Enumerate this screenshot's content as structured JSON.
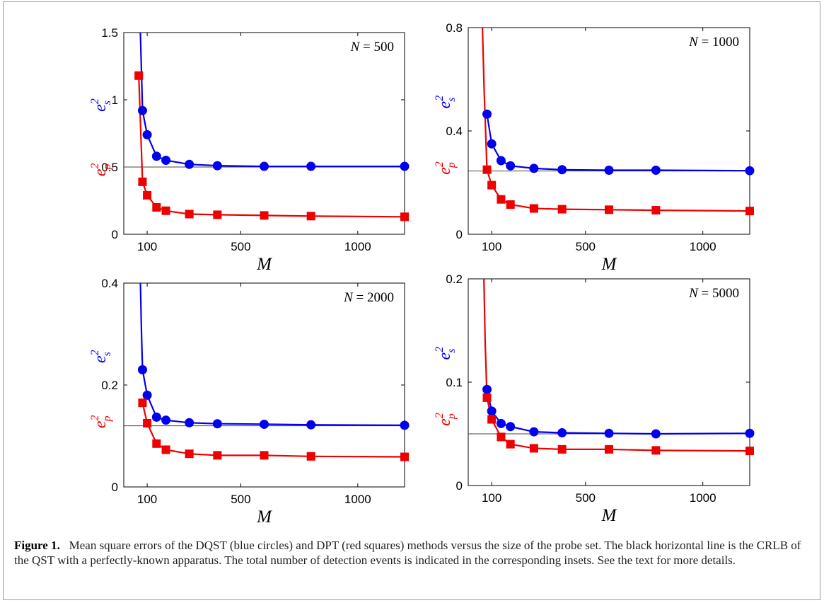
{
  "figure_label": "Figure 1.",
  "caption_text": "Mean square errors of the DQST (blue circles) and DPT (red squares) methods versus the size of the probe set. The black horizontal line is the CRLB of the QST with a perfectly-known apparatus. The total number of detection events is indicated in the corresponding insets. See the text for more details.",
  "colors": {
    "dqst": "#0000ee",
    "dpt": "#ee0000",
    "crlb": "#444444",
    "axis": "#000000"
  },
  "chart_data": [
    {
      "type": "line",
      "inset": {
        "var": "N",
        "eq": " = ",
        "value": "500"
      },
      "ylabel_blue": {
        "base": "e",
        "sup": "2",
        "sub": "s"
      },
      "ylabel_red": {
        "base": "e",
        "sup": "2",
        "sub": "p"
      },
      "xlabel": "M",
      "xlim": [
        0,
        1200
      ],
      "ylim": [
        0,
        1.5
      ],
      "xticks": [
        100,
        500,
        1000
      ],
      "xtick_labels": [
        "100",
        "500",
        "1000"
      ],
      "yticks": [
        0,
        0.5,
        1,
        1.5
      ],
      "ytick_labels": [
        "0",
        "0.5",
        "1",
        "1.5"
      ],
      "crlb": 0.5,
      "series": [
        {
          "key": "dqst",
          "marker": "circle",
          "x": [
            80,
            100,
            140,
            180,
            280,
            400,
            600,
            800,
            1200
          ],
          "y": [
            0.92,
            0.74,
            0.58,
            0.55,
            0.52,
            0.51,
            0.505,
            0.505,
            0.505
          ],
          "lead_in": {
            "x": [
              70,
              75,
              80
            ],
            "y": [
              1.55,
              1.25,
              0.92
            ]
          }
        },
        {
          "key": "dpt",
          "marker": "square",
          "x": [
            64,
            80,
            100,
            140,
            180,
            280,
            400,
            600,
            800,
            1200
          ],
          "y": [
            1.18,
            0.39,
            0.29,
            0.2,
            0.175,
            0.15,
            0.145,
            0.14,
            0.135,
            0.13
          ]
        }
      ]
    },
    {
      "type": "line",
      "inset": {
        "var": "N",
        "eq": " = ",
        "value": "1000"
      },
      "ylabel_blue": {
        "base": "e",
        "sup": "2",
        "sub": "s"
      },
      "ylabel_red": {
        "base": "e",
        "sup": "2",
        "sub": "p"
      },
      "xlabel": "M",
      "xlim": [
        0,
        1200
      ],
      "ylim": [
        0,
        0.8
      ],
      "xticks": [
        100,
        500,
        1000
      ],
      "xtick_labels": [
        "100",
        "500",
        "1000"
      ],
      "yticks": [
        0,
        0.4,
        0.8
      ],
      "ytick_labels": [
        "0",
        "0.4",
        "0.8"
      ],
      "crlb": 0.245,
      "series": [
        {
          "key": "dqst",
          "marker": "circle",
          "x": [
            80,
            100,
            140,
            180,
            280,
            400,
            600,
            800,
            1200
          ],
          "y": [
            0.465,
            0.35,
            0.285,
            0.265,
            0.255,
            0.25,
            0.248,
            0.248,
            0.246
          ]
        },
        {
          "key": "dpt",
          "marker": "square",
          "x": [
            80,
            100,
            140,
            180,
            280,
            400,
            600,
            800,
            1200
          ],
          "y": [
            0.25,
            0.19,
            0.135,
            0.115,
            0.1,
            0.097,
            0.095,
            0.093,
            0.09
          ],
          "lead_in": {
            "x": [
              60,
              68,
              80
            ],
            "y": [
              0.82,
              0.55,
              0.25
            ]
          }
        }
      ]
    },
    {
      "type": "line",
      "inset": {
        "var": "N",
        "eq": " = ",
        "value": "2000"
      },
      "ylabel_blue": {
        "base": "e",
        "sup": "2",
        "sub": "s"
      },
      "ylabel_red": {
        "base": "e",
        "sup": "2",
        "sub": "p"
      },
      "xlabel": "M",
      "xlim": [
        0,
        1200
      ],
      "ylim": [
        0,
        0.4
      ],
      "xticks": [
        100,
        500,
        1000
      ],
      "xtick_labels": [
        "100",
        "500",
        "1000"
      ],
      "yticks": [
        0,
        0.2,
        0.4
      ],
      "ytick_labels": [
        "0",
        "0.2",
        "0.4"
      ],
      "crlb": 0.12,
      "series": [
        {
          "key": "dqst",
          "marker": "circle",
          "x": [
            80,
            100,
            140,
            180,
            280,
            400,
            600,
            800,
            1200
          ],
          "y": [
            0.23,
            0.18,
            0.137,
            0.131,
            0.126,
            0.124,
            0.123,
            0.122,
            0.121
          ],
          "lead_in": {
            "x": [
              70,
              76,
              80
            ],
            "y": [
              0.42,
              0.3,
              0.23
            ]
          }
        },
        {
          "key": "dpt",
          "marker": "square",
          "x": [
            80,
            100,
            140,
            180,
            280,
            400,
            600,
            800,
            1200
          ],
          "y": [
            0.165,
            0.125,
            0.085,
            0.073,
            0.065,
            0.062,
            0.062,
            0.06,
            0.059
          ]
        }
      ]
    },
    {
      "type": "line",
      "inset": {
        "var": "N",
        "eq": " = ",
        "value": "5000"
      },
      "ylabel_blue": {
        "base": "e",
        "sup": "2",
        "sub": "s"
      },
      "ylabel_red": {
        "base": "e",
        "sup": "2",
        "sub": "p"
      },
      "xlabel": "M",
      "xlim": [
        0,
        1200
      ],
      "ylim": [
        0,
        0.2
      ],
      "xticks": [
        100,
        500,
        1000
      ],
      "xtick_labels": [
        "100",
        "500",
        "1000"
      ],
      "yticks": [
        0,
        0.1,
        0.2
      ],
      "ytick_labels": [
        "0",
        "0.1",
        "0.2"
      ],
      "crlb": 0.05,
      "series": [
        {
          "key": "dqst",
          "marker": "circle",
          "x": [
            80,
            100,
            140,
            180,
            280,
            400,
            600,
            800,
            1200
          ],
          "y": [
            0.093,
            0.072,
            0.06,
            0.057,
            0.052,
            0.051,
            0.0505,
            0.05,
            0.0505
          ]
        },
        {
          "key": "dpt",
          "marker": "square",
          "x": [
            80,
            100,
            140,
            180,
            280,
            400,
            600,
            800,
            1200
          ],
          "y": [
            0.085,
            0.064,
            0.047,
            0.04,
            0.036,
            0.035,
            0.035,
            0.034,
            0.0335
          ],
          "lead_in": {
            "x": [
              66,
              72,
              80
            ],
            "y": [
              0.21,
              0.14,
              0.085
            ]
          }
        }
      ]
    }
  ]
}
